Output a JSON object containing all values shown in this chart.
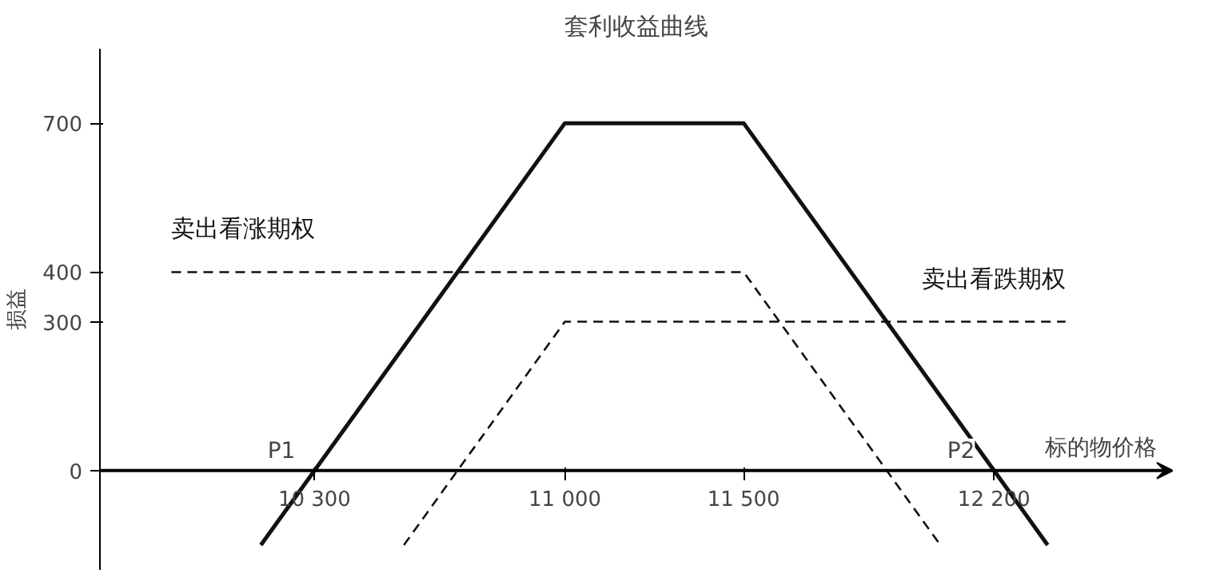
{
  "chart_data": {
    "type": "line",
    "title": "套利收益曲线",
    "xlabel": "标的物价格",
    "ylabel": "损益",
    "xlim": [
      9700,
      12700
    ],
    "ylim": [
      -200,
      850
    ],
    "xticks": [
      {
        "value": 10300,
        "label": "10 300"
      },
      {
        "value": 11000,
        "label": "11 000"
      },
      {
        "value": 11500,
        "label": "11 500"
      },
      {
        "value": 12200,
        "label": "12 200"
      }
    ],
    "yticks": [
      0,
      300,
      400,
      700
    ],
    "grid": false,
    "series": [
      {
        "color": "#111111",
        "line_style": "solid",
        "x": [
          10150,
          10300,
          11000,
          11500,
          12200,
          12350
        ],
        "values": [
          -150,
          0,
          700,
          700,
          0,
          -150
        ]
      },
      {
        "name": "卖出看涨期权",
        "color": "#111111",
        "line_style": "dashed",
        "x": [
          9900,
          11500,
          12050
        ],
        "values": [
          400,
          400,
          -150
        ]
      },
      {
        "name": "卖出看跌期权",
        "color": "#111111",
        "line_style": "dashed",
        "x": [
          10550,
          11000,
          12400
        ],
        "values": [
          -150,
          300,
          300
        ]
      }
    ],
    "annotations": [
      {
        "text": "P1",
        "x": 10300,
        "y": 0
      },
      {
        "text": "P2",
        "x": 12200,
        "y": 0
      }
    ]
  }
}
